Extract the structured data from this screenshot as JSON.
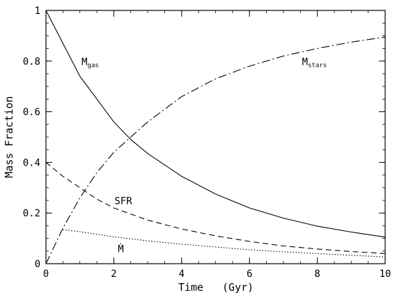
{
  "chart_data": {
    "type": "line",
    "xlabel": "Time   (Gyr)",
    "ylabel": "Mass Fraction",
    "xlim": [
      0,
      10
    ],
    "ylim": [
      0,
      1
    ],
    "x_ticks": [
      "0",
      "2",
      "4",
      "6",
      "8",
      "10"
    ],
    "y_ticks": [
      "0",
      "0.2",
      "0.4",
      "0.6",
      "0.8",
      "1"
    ],
    "grid": false,
    "series": [
      {
        "name": "Mgas",
        "style": "solid",
        "x": [
          0,
          0.5,
          1,
          1.5,
          2,
          2.5,
          3,
          4,
          5,
          6,
          7,
          8,
          9,
          10
        ],
        "y": [
          1.0,
          0.87,
          0.74,
          0.65,
          0.56,
          0.49,
          0.435,
          0.345,
          0.275,
          0.22,
          0.18,
          0.148,
          0.125,
          0.105
        ]
      },
      {
        "name": "Mstars",
        "style": "dash-dot",
        "x": [
          0,
          0.5,
          1,
          1.5,
          2,
          3,
          4,
          5,
          6,
          7,
          8,
          9,
          10
        ],
        "y": [
          0.0,
          0.14,
          0.26,
          0.36,
          0.44,
          0.56,
          0.66,
          0.73,
          0.78,
          0.82,
          0.85,
          0.875,
          0.895
        ]
      },
      {
        "name": "SFR",
        "style": "dashed",
        "x": [
          0,
          0.5,
          1,
          1.5,
          2,
          3,
          4,
          5,
          6,
          7,
          8,
          9,
          10
        ],
        "y": [
          0.4,
          0.345,
          0.3,
          0.255,
          0.22,
          0.172,
          0.137,
          0.11,
          0.088,
          0.07,
          0.058,
          0.048,
          0.04
        ]
      },
      {
        "name": "Mdot",
        "style": "dotted",
        "x": [
          0.5,
          1,
          2,
          3,
          4,
          5,
          6,
          7,
          8,
          9,
          10
        ],
        "y": [
          0.135,
          0.126,
          0.106,
          0.09,
          0.077,
          0.066,
          0.055,
          0.047,
          0.04,
          0.033,
          0.027
        ]
      }
    ],
    "annotations": [
      {
        "series": "Mgas",
        "main": "M",
        "sub": "gas"
      },
      {
        "series": "Mstars",
        "main": "M",
        "sub": "stars"
      },
      {
        "series": "SFR",
        "main": "SFR",
        "sub": ""
      },
      {
        "series": "Mdot",
        "main": "Ṁ",
        "sub": ""
      }
    ]
  }
}
